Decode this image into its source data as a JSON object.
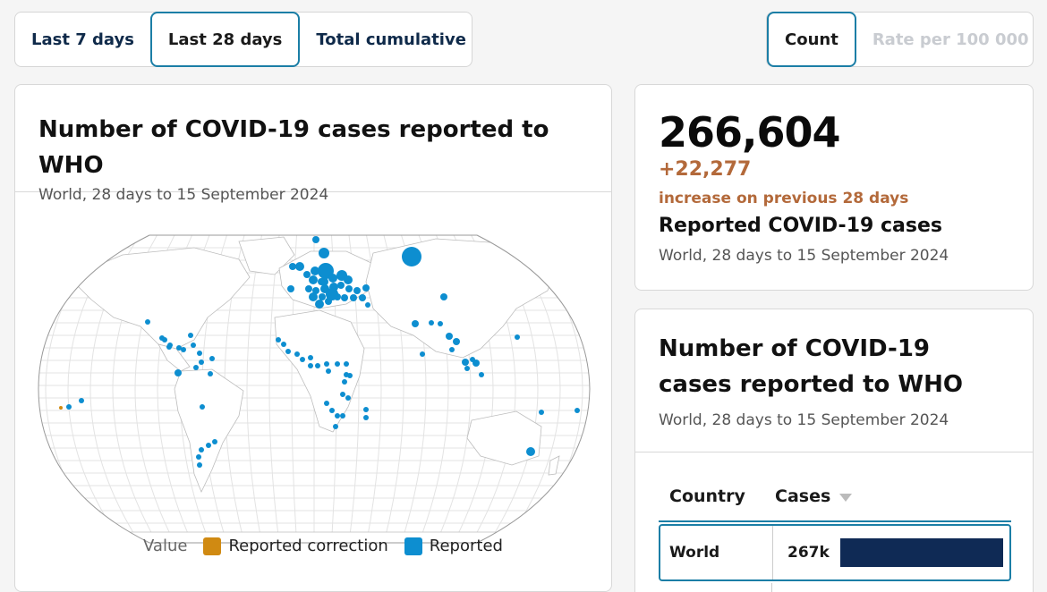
{
  "period_tabs": [
    {
      "label": "Last 7 days",
      "active": false
    },
    {
      "label": "Last 28 days",
      "active": true
    },
    {
      "label": "Total cumulative",
      "active": false
    }
  ],
  "metric_tabs": [
    {
      "label": "Count",
      "active": true
    },
    {
      "label": "Rate per 100 000",
      "active": false,
      "disabled": true
    }
  ],
  "map_card": {
    "title": "Number of COVID-19 cases reported to WHO",
    "subtitle": "World, 28 days to 15 September 2024",
    "legend": {
      "title": "Value",
      "items": [
        {
          "label": "Reported correction",
          "color": "#d08a12"
        },
        {
          "label": "Reported",
          "color": "#0d8ed0"
        }
      ]
    }
  },
  "stat_card": {
    "value": "266,604",
    "delta": "+22,277",
    "delta_label": "increase on previous 28 days",
    "label": "Reported COVID-19 cases",
    "subtitle": "World, 28 days to 15 September 2024"
  },
  "table_card": {
    "title": "Number of COVID-19 cases reported to WHO",
    "subtitle": "World, 28 days to 15 September 2024",
    "columns": {
      "country": "Country",
      "cases": "Cases"
    },
    "rows": [
      {
        "country": "World",
        "cases": "267k",
        "bar_fraction": 1.0
      }
    ]
  },
  "colors": {
    "accent": "#1b7ea6",
    "reported": "#0d8ed0",
    "correction": "#d08a12",
    "increase": "#b3693a",
    "bar": "#0f2a55"
  }
}
